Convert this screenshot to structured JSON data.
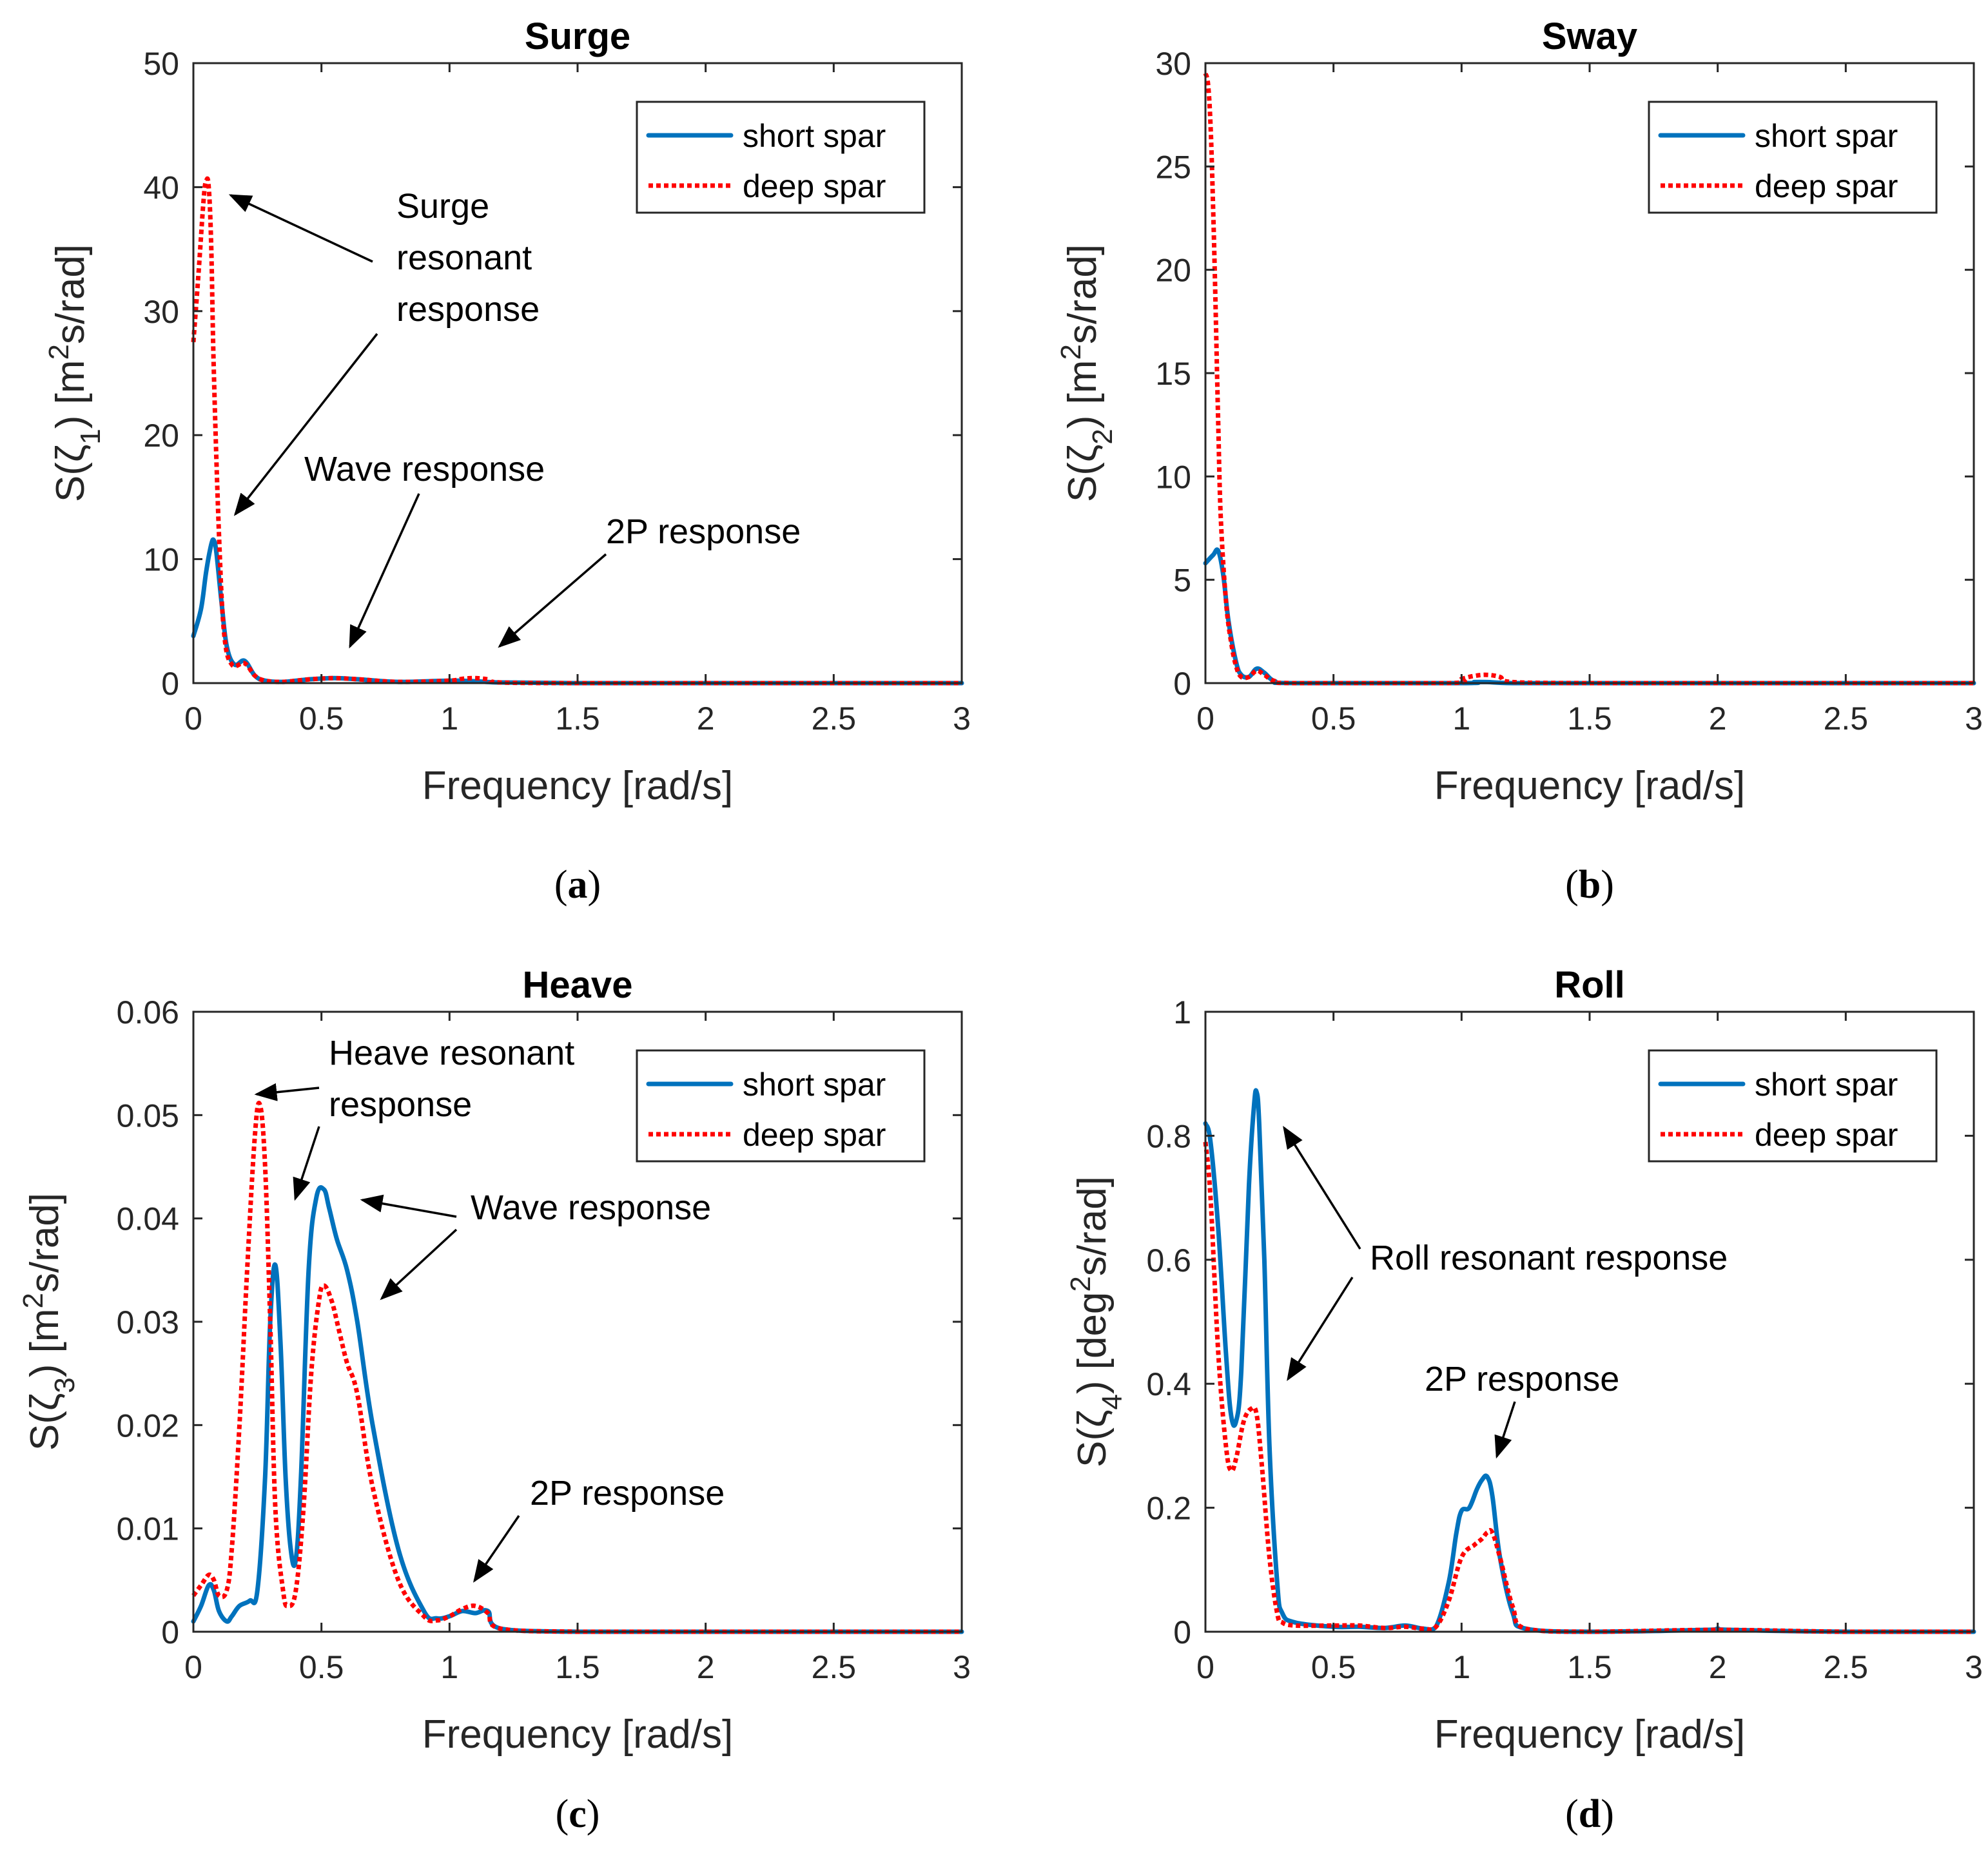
{
  "figure": {
    "colors": {
      "short": "#0072BD",
      "deep": "#FF0000",
      "axis": "#262626",
      "arrow": "#000000"
    },
    "legend": {
      "short": "short spar",
      "deep": "deep spar"
    },
    "xlabel": "Frequency [rad/s]"
  },
  "chart_data": [
    {
      "id": "a",
      "type": "line",
      "title": "Surge",
      "caption_letter": "a",
      "xlabel": "Frequency [rad/s]",
      "ylabel": "S(ζ1) [m2s/rad]",
      "ylabel_parts": {
        "pre": "S(ζ",
        "sub": "1",
        "mid": ") [m",
        "sup": "2",
        "post": "s/rad]"
      },
      "xlim": [
        0,
        3
      ],
      "ylim": [
        0,
        50
      ],
      "xticks": [
        "0",
        "0.5",
        "1",
        "1.5",
        "2",
        "2.5",
        "3"
      ],
      "yticks": [
        "0",
        "10",
        "20",
        "30",
        "40",
        "50"
      ],
      "ytick_values": [
        0,
        10,
        20,
        30,
        40,
        50
      ],
      "legend_position": "top-right",
      "series": [
        {
          "name": "short spar",
          "style": "solid",
          "x": [
            0,
            0.03,
            0.05,
            0.07,
            0.08,
            0.09,
            0.11,
            0.13,
            0.16,
            0.2,
            0.24,
            0.28,
            0.35,
            0.45,
            0.55,
            0.65,
            0.8,
            1.0,
            1.1,
            1.2,
            1.5,
            2,
            2.5,
            3
          ],
          "y": [
            3.8,
            6,
            9,
            11.2,
            11.5,
            10.5,
            6.5,
            3,
            1.5,
            1.8,
            0.6,
            0.2,
            0.1,
            0.3,
            0.4,
            0.3,
            0.1,
            0.2,
            0.15,
            0.05,
            0,
            0,
            0,
            0
          ]
        },
        {
          "name": "deep spar",
          "style": "dotted",
          "x": [
            0,
            0.02,
            0.04,
            0.05,
            0.06,
            0.07,
            0.08,
            0.1,
            0.12,
            0.15,
            0.2,
            0.24,
            0.28,
            0.35,
            0.45,
            0.55,
            0.65,
            0.8,
            1.0,
            1.05,
            1.1,
            1.15,
            1.2,
            1.5,
            2,
            2.5,
            3
          ],
          "y": [
            27.5,
            33,
            39,
            40.5,
            40,
            35,
            25,
            12,
            4,
            1.5,
            1.6,
            0.6,
            0.2,
            0.1,
            0.3,
            0.4,
            0.3,
            0.1,
            0.2,
            0.35,
            0.4,
            0.3,
            0.05,
            0,
            0,
            0,
            0
          ]
        }
      ],
      "annotations": [
        {
          "lines": [
            "Surge",
            "resonant",
            "response"
          ]
        },
        {
          "lines": [
            "Wave response"
          ]
        },
        {
          "lines": [
            "2P response"
          ]
        }
      ]
    },
    {
      "id": "b",
      "type": "line",
      "title": "Sway",
      "caption_letter": "b",
      "xlabel": "Frequency [rad/s]",
      "ylabel": "S(ζ2) [m2s/rad]",
      "ylabel_parts": {
        "pre": "S(ζ",
        "sub": "2",
        "mid": ") [m",
        "sup": "2",
        "post": "s/rad]"
      },
      "xlim": [
        0,
        3
      ],
      "ylim": [
        0,
        30
      ],
      "xticks": [
        "0",
        "0.5",
        "1",
        "1.5",
        "2",
        "2.5",
        "3"
      ],
      "yticks": [
        "0",
        "5",
        "10",
        "15",
        "20",
        "25",
        "30"
      ],
      "ytick_values": [
        0,
        5,
        10,
        15,
        20,
        25,
        30
      ],
      "legend_position": "top-right",
      "series": [
        {
          "name": "short spar",
          "style": "solid",
          "x": [
            0,
            0.03,
            0.05,
            0.07,
            0.09,
            0.12,
            0.14,
            0.17,
            0.2,
            0.23,
            0.27,
            0.35,
            1.0,
            1.05,
            1.1,
            1.2,
            1.5,
            2,
            2.5,
            3
          ],
          "y": [
            5.8,
            6.2,
            6.4,
            5.2,
            3,
            1,
            0.4,
            0.3,
            0.7,
            0.5,
            0.1,
            0,
            0,
            0.05,
            0.05,
            0,
            0,
            0,
            0,
            0
          ]
        },
        {
          "name": "deep spar",
          "style": "dotted",
          "x": [
            0,
            0.01,
            0.02,
            0.03,
            0.04,
            0.05,
            0.06,
            0.08,
            0.1,
            0.12,
            0.14,
            0.17,
            0.2,
            0.23,
            0.27,
            0.35,
            0.95,
            1.0,
            1.05,
            1.1,
            1.15,
            1.2,
            1.5,
            2,
            2.5,
            3
          ],
          "y": [
            29.5,
            29,
            27,
            23,
            18,
            12.5,
            8,
            4,
            2,
            0.8,
            0.3,
            0.3,
            0.6,
            0.4,
            0.1,
            0,
            0,
            0.2,
            0.35,
            0.4,
            0.3,
            0.05,
            0,
            0,
            0,
            0
          ]
        }
      ],
      "annotations": []
    },
    {
      "id": "c",
      "type": "line",
      "title": "Heave",
      "caption_letter": "c",
      "xlabel": "Frequency [rad/s]",
      "ylabel": "S(ζ3) [m2s/rad]",
      "ylabel_parts": {
        "pre": "S(ζ",
        "sub": "3",
        "mid": ") [m",
        "sup": "2",
        "post": "s/rad]"
      },
      "xlim": [
        0,
        3
      ],
      "ylim": [
        0,
        0.06
      ],
      "xticks": [
        "0",
        "0.5",
        "1",
        "1.5",
        "2",
        "2.5",
        "3"
      ],
      "yticks": [
        "0",
        "0.01",
        "0.02",
        "0.03",
        "0.04",
        "0.05",
        "0.06"
      ],
      "ytick_values": [
        0,
        0.01,
        0.02,
        0.03,
        0.04,
        0.05,
        0.06
      ],
      "legend_position": "top-right",
      "series": [
        {
          "name": "short spar",
          "style": "solid",
          "x": [
            0,
            0.03,
            0.06,
            0.08,
            0.1,
            0.13,
            0.15,
            0.18,
            0.22,
            0.25,
            0.28,
            0.3,
            0.32,
            0.34,
            0.36,
            0.38,
            0.4,
            0.42,
            0.45,
            0.48,
            0.51,
            0.53,
            0.56,
            0.6,
            0.64,
            0.7,
            0.8,
            0.9,
            0.95,
            1.0,
            1.05,
            1.1,
            1.15,
            1.2,
            1.5,
            2,
            2.5,
            3
          ],
          "y": [
            0.001,
            0.0025,
            0.0045,
            0.004,
            0.002,
            0.001,
            0.0015,
            0.0025,
            0.003,
            0.004,
            0.015,
            0.03,
            0.0355,
            0.028,
            0.015,
            0.008,
            0.007,
            0.015,
            0.035,
            0.042,
            0.0428,
            0.041,
            0.038,
            0.035,
            0.03,
            0.02,
            0.008,
            0.002,
            0.0013,
            0.0015,
            0.002,
            0.0018,
            0.002,
            0.0003,
            0,
            0,
            0,
            0
          ]
        },
        {
          "name": "deep spar",
          "style": "dotted",
          "x": [
            0,
            0.03,
            0.06,
            0.08,
            0.1,
            0.13,
            0.15,
            0.18,
            0.21,
            0.24,
            0.26,
            0.28,
            0.3,
            0.32,
            0.35,
            0.37,
            0.4,
            0.43,
            0.46,
            0.49,
            0.51,
            0.54,
            0.57,
            0.6,
            0.64,
            0.7,
            0.8,
            0.9,
            0.95,
            1.0,
            1.05,
            1.1,
            1.15,
            1.2,
            1.5,
            2,
            2.5,
            3
          ],
          "y": [
            0.0035,
            0.0045,
            0.0055,
            0.005,
            0.0035,
            0.004,
            0.008,
            0.02,
            0.035,
            0.048,
            0.051,
            0.045,
            0.03,
            0.012,
            0.004,
            0.0025,
            0.004,
            0.012,
            0.025,
            0.032,
            0.0335,
            0.032,
            0.029,
            0.026,
            0.023,
            0.014,
            0.005,
            0.0015,
            0.0011,
            0.0015,
            0.0022,
            0.0025,
            0.0018,
            0.0003,
            0,
            0,
            0,
            0
          ]
        }
      ],
      "annotations": [
        {
          "lines": [
            "Heave resonant",
            "response"
          ]
        },
        {
          "lines": [
            "Wave response"
          ]
        },
        {
          "lines": [
            "2P response"
          ]
        }
      ]
    },
    {
      "id": "d",
      "type": "line",
      "title": "Roll",
      "caption_letter": "d",
      "xlabel": "Frequency [rad/s]",
      "ylabel": "S(ζ4) [deg2s/rad]",
      "ylabel_parts": {
        "pre": "S(ζ",
        "sub": "4",
        "mid": ") [deg",
        "sup": "2",
        "post": "s/rad]"
      },
      "xlim": [
        0,
        3
      ],
      "ylim": [
        0,
        1
      ],
      "xticks": [
        "0",
        "0.5",
        "1",
        "1.5",
        "2",
        "2.5",
        "3"
      ],
      "yticks": [
        "0",
        "0.2",
        "0.4",
        "0.6",
        "0.8",
        "1"
      ],
      "ytick_values": [
        0,
        0.2,
        0.4,
        0.6,
        0.8,
        1
      ],
      "legend_position": "top-right",
      "series": [
        {
          "name": "short spar",
          "style": "solid",
          "x": [
            0,
            0.02,
            0.05,
            0.08,
            0.1,
            0.12,
            0.14,
            0.17,
            0.19,
            0.2,
            0.21,
            0.23,
            0.25,
            0.28,
            0.3,
            0.35,
            0.5,
            0.6,
            0.7,
            0.78,
            0.85,
            0.9,
            0.95,
            0.98,
            1.0,
            1.03,
            1.06,
            1.08,
            1.1,
            1.12,
            1.15,
            1.2,
            1.25,
            1.5,
            1.95,
            2.0,
            2.05,
            2.5,
            3
          ],
          "y": [
            0.82,
            0.79,
            0.65,
            0.45,
            0.35,
            0.34,
            0.42,
            0.72,
            0.85,
            0.87,
            0.82,
            0.6,
            0.3,
            0.08,
            0.03,
            0.015,
            0.008,
            0.008,
            0.006,
            0.01,
            0.005,
            0.008,
            0.08,
            0.16,
            0.195,
            0.2,
            0.23,
            0.245,
            0.25,
            0.22,
            0.12,
            0.03,
            0.005,
            0,
            0.003,
            0.005,
            0.003,
            0,
            0
          ]
        },
        {
          "name": "deep spar",
          "style": "dotted",
          "x": [
            0,
            0.02,
            0.05,
            0.08,
            0.1,
            0.12,
            0.15,
            0.18,
            0.2,
            0.22,
            0.25,
            0.28,
            0.3,
            0.35,
            0.5,
            0.6,
            0.7,
            0.78,
            0.85,
            0.9,
            0.95,
            1.0,
            1.05,
            1.08,
            1.1,
            1.12,
            1.15,
            1.2,
            1.25,
            1.5,
            2.0,
            2.5,
            3
          ],
          "y": [
            0.79,
            0.7,
            0.45,
            0.3,
            0.26,
            0.28,
            0.34,
            0.36,
            0.35,
            0.27,
            0.12,
            0.03,
            0.015,
            0.01,
            0.01,
            0.01,
            0.006,
            0.008,
            0.005,
            0.008,
            0.05,
            0.12,
            0.14,
            0.15,
            0.16,
            0.16,
            0.12,
            0.04,
            0.005,
            0,
            0.003,
            0,
            0
          ]
        }
      ],
      "annotations": [
        {
          "lines": [
            "Roll resonant response"
          ]
        },
        {
          "lines": [
            "2P response"
          ]
        }
      ]
    }
  ]
}
